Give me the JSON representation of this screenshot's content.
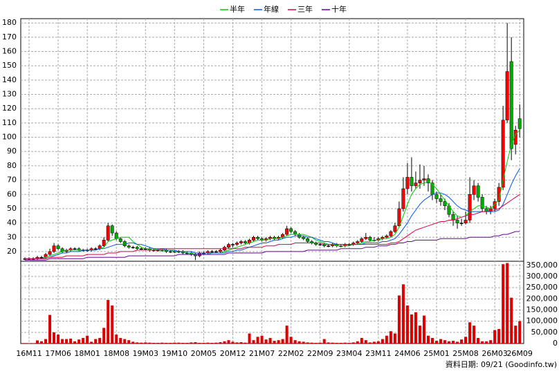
{
  "chart_data": {
    "type": "candlestick",
    "legend": "top",
    "categories": [
      null,
      "16M11",
      null,
      null,
      null,
      null,
      null,
      null,
      "17M06",
      null,
      null,
      null,
      null,
      null,
      null,
      "18M01",
      null,
      null,
      null,
      null,
      null,
      null,
      "18M08",
      null,
      null,
      null,
      null,
      null,
      null,
      "19M03",
      null,
      null,
      null,
      null,
      null,
      null,
      "19M10",
      null,
      null,
      null,
      null,
      null,
      null,
      "20M05",
      null,
      null,
      null,
      null,
      null,
      null,
      "20M12",
      null,
      null,
      null,
      null,
      null,
      null,
      "21M07",
      null,
      null,
      null,
      null,
      null,
      null,
      "22M02",
      null,
      null,
      null,
      null,
      null,
      null,
      "22M09",
      null,
      null,
      null,
      null,
      null,
      null,
      "23M04",
      null,
      null,
      null,
      null,
      null,
      null,
      "23M11",
      null,
      null,
      null,
      null,
      null,
      null,
      "24M06",
      null,
      null,
      null,
      null,
      null,
      null,
      "25M01",
      null,
      null,
      null,
      null,
      null,
      null,
      "25M08",
      null,
      null,
      null,
      null,
      null,
      null,
      "26M03",
      null,
      null,
      null,
      null,
      null,
      "26M09"
    ],
    "open": [
      15,
      15,
      15,
      15,
      16,
      16,
      18,
      20,
      24,
      22,
      20,
      21,
      22,
      22,
      21,
      21,
      21,
      22,
      22,
      24,
      28,
      38,
      33,
      29,
      27,
      24,
      23,
      23,
      22,
      22,
      22,
      21,
      21,
      21,
      21,
      20,
      20,
      20,
      20,
      19,
      19,
      18,
      17,
      19,
      19,
      20,
      20,
      20,
      21,
      23,
      25,
      25,
      26,
      27,
      26,
      28,
      30,
      29,
      28,
      29,
      30,
      29,
      30,
      32,
      36,
      34,
      32,
      30,
      29,
      27,
      26,
      25,
      25,
      24,
      24,
      25,
      24,
      24,
      25,
      25,
      26,
      27,
      29,
      30,
      28,
      28,
      29,
      30,
      31,
      34,
      38,
      50,
      64,
      72,
      66,
      68,
      70,
      71,
      68,
      60,
      57,
      55,
      52,
      46,
      42,
      40,
      40,
      42,
      60,
      66,
      58,
      50,
      48,
      50,
      55,
      65,
      112,
      153,
      95,
      113
    ],
    "high": [
      16,
      16,
      16,
      17,
      17,
      19,
      22,
      26,
      25,
      23,
      22,
      23,
      23,
      23,
      22,
      22,
      23,
      23,
      25,
      30,
      40,
      39,
      34,
      30,
      28,
      25,
      24,
      24,
      23,
      23,
      23,
      22,
      22,
      22,
      22,
      21,
      21,
      21,
      21,
      20,
      20,
      19,
      20,
      20,
      21,
      21,
      21,
      22,
      24,
      26,
      26,
      27,
      28,
      28,
      29,
      31,
      31,
      30,
      30,
      31,
      31,
      31,
      33,
      38,
      37,
      35,
      33,
      31,
      30,
      28,
      27,
      26,
      26,
      25,
      26,
      26,
      25,
      26,
      26,
      27,
      28,
      30,
      33,
      31,
      30,
      30,
      31,
      32,
      35,
      40,
      55,
      72,
      82,
      86,
      76,
      81,
      80,
      74,
      70,
      62,
      60,
      57,
      54,
      48,
      45,
      43,
      48,
      72,
      70,
      68,
      60,
      52,
      52,
      57,
      68,
      122,
      180,
      170,
      108,
      123
    ],
    "low": [
      14,
      14,
      14,
      14,
      15,
      15,
      17,
      19,
      21,
      19,
      19,
      20,
      21,
      20,
      20,
      20,
      20,
      21,
      21,
      23,
      27,
      31,
      28,
      26,
      23,
      22,
      22,
      21,
      21,
      21,
      20,
      20,
      20,
      20,
      19,
      19,
      19,
      19,
      18,
      18,
      17,
      14,
      16,
      18,
      18,
      19,
      19,
      19,
      20,
      22,
      23,
      24,
      25,
      25,
      25,
      27,
      28,
      27,
      27,
      28,
      28,
      28,
      29,
      31,
      33,
      31,
      29,
      28,
      26,
      25,
      24,
      24,
      23,
      23,
      23,
      23,
      23,
      23,
      24,
      24,
      25,
      26,
      28,
      27,
      27,
      27,
      28,
      29,
      30,
      33,
      37,
      48,
      60,
      62,
      64,
      64,
      66,
      62,
      56,
      54,
      52,
      49,
      44,
      38,
      36,
      38,
      39,
      40,
      56,
      55,
      48,
      46,
      46,
      48,
      52,
      63,
      110,
      84,
      88,
      100
    ],
    "close": [
      15,
      15,
      15,
      16,
      16,
      18,
      20,
      24,
      22,
      20,
      21,
      22,
      22,
      21,
      21,
      21,
      22,
      22,
      24,
      28,
      38,
      33,
      29,
      27,
      24,
      23,
      23,
      22,
      22,
      22,
      21,
      21,
      21,
      21,
      20,
      20,
      20,
      20,
      19,
      19,
      18,
      17,
      19,
      19,
      20,
      20,
      20,
      21,
      23,
      25,
      25,
      26,
      27,
      26,
      28,
      30,
      29,
      28,
      29,
      30,
      29,
      30,
      32,
      36,
      34,
      32,
      30,
      29,
      27,
      26,
      25,
      25,
      24,
      24,
      25,
      24,
      24,
      25,
      25,
      26,
      27,
      29,
      30,
      28,
      28,
      29,
      30,
      31,
      34,
      38,
      50,
      64,
      72,
      66,
      68,
      70,
      71,
      68,
      60,
      57,
      55,
      52,
      46,
      42,
      40,
      40,
      42,
      60,
      66,
      58,
      50,
      48,
      50,
      55,
      65,
      112,
      146,
      92,
      105,
      106
    ],
    "up_color": "#ff0000",
    "down_color": "#00aa00",
    "flat_color": "#000000",
    "series": [
      {
        "name": "半年",
        "color": "#00cc00",
        "values": [
          15,
          15,
          15,
          15,
          15,
          16,
          17,
          18,
          19,
          20,
          21,
          21,
          21,
          21,
          21,
          21,
          21,
          21,
          22,
          23,
          27,
          28,
          29,
          30,
          30,
          30,
          27,
          25,
          23,
          22,
          22,
          22,
          21,
          21,
          21,
          21,
          20,
          20,
          20,
          19,
          19,
          18,
          18,
          18,
          18,
          19,
          19,
          19,
          20,
          21,
          22,
          23,
          24,
          25,
          26,
          27,
          28,
          28,
          28,
          29,
          29,
          29,
          30,
          31,
          32,
          32,
          32,
          32,
          31,
          30,
          28,
          27,
          26,
          25,
          25,
          24,
          24,
          24,
          24,
          25,
          25,
          26,
          27,
          27,
          28,
          28,
          29,
          29,
          30,
          32,
          37,
          45,
          53,
          60,
          64,
          67,
          68,
          69,
          67,
          64,
          60,
          56,
          52,
          48,
          45,
          44,
          45,
          48,
          50,
          52,
          52,
          51,
          50,
          53,
          56,
          70,
          83,
          95,
          102,
          105
        ]
      },
      {
        "name": "年線",
        "color": "#0055ee",
        "values": [
          15,
          15,
          15,
          15,
          15,
          15,
          16,
          17,
          18,
          19,
          19,
          20,
          20,
          20,
          21,
          21,
          21,
          21,
          22,
          22,
          23,
          24,
          25,
          25,
          25,
          26,
          26,
          25,
          25,
          24,
          23,
          22,
          22,
          22,
          21,
          21,
          21,
          20,
          20,
          20,
          20,
          19,
          19,
          19,
          19,
          19,
          19,
          19,
          19,
          20,
          20,
          21,
          21,
          22,
          23,
          24,
          25,
          26,
          26,
          27,
          28,
          28,
          29,
          30,
          30,
          31,
          31,
          31,
          30,
          30,
          29,
          28,
          27,
          27,
          26,
          25,
          25,
          25,
          25,
          25,
          25,
          25,
          26,
          26,
          26,
          26,
          27,
          27,
          28,
          29,
          32,
          36,
          40,
          45,
          49,
          53,
          56,
          58,
          60,
          61,
          61,
          60,
          58,
          55,
          52,
          50,
          49,
          48,
          48,
          48,
          48,
          48,
          48,
          48,
          49,
          53,
          60,
          67,
          73,
          78
        ]
      },
      {
        "name": "三年",
        "color": "#dd0044",
        "values": [
          15,
          15,
          15,
          15,
          15,
          15,
          16,
          16,
          16,
          16,
          17,
          17,
          17,
          17,
          17,
          18,
          18,
          18,
          18,
          18,
          19,
          19,
          19,
          20,
          20,
          20,
          20,
          21,
          21,
          21,
          21,
          21,
          21,
          22,
          22,
          22,
          22,
          22,
          22,
          22,
          22,
          22,
          22,
          22,
          22,
          22,
          22,
          22,
          22,
          22,
          22,
          22,
          22,
          23,
          23,
          23,
          23,
          23,
          24,
          24,
          24,
          25,
          25,
          25,
          25,
          26,
          26,
          26,
          26,
          26,
          26,
          26,
          25,
          25,
          25,
          25,
          25,
          25,
          25,
          25,
          25,
          25,
          25,
          25,
          25,
          25,
          25,
          25,
          26,
          26,
          27,
          29,
          31,
          33,
          35,
          36,
          37,
          38,
          39,
          40,
          41,
          41,
          42,
          42,
          43,
          44,
          45,
          46,
          46,
          47,
          48,
          48,
          49,
          49,
          50,
          52,
          54,
          56,
          58,
          60
        ]
      },
      {
        "name": "十年",
        "color": "#660099",
        "values": [
          14,
          14,
          14,
          14,
          14,
          14,
          15,
          15,
          15,
          15,
          15,
          15,
          15,
          15,
          15,
          16,
          16,
          16,
          16,
          16,
          16,
          16,
          16,
          16,
          16,
          17,
          17,
          17,
          17,
          17,
          17,
          17,
          17,
          17,
          17,
          17,
          17,
          18,
          18,
          18,
          18,
          18,
          18,
          18,
          18,
          18,
          18,
          18,
          18,
          19,
          19,
          19,
          19,
          19,
          19,
          19,
          19,
          19,
          20,
          20,
          20,
          20,
          20,
          20,
          20,
          20,
          20,
          20,
          21,
          21,
          21,
          21,
          21,
          21,
          21,
          21,
          22,
          22,
          22,
          22,
          22,
          22,
          23,
          23,
          23,
          24,
          24,
          24,
          25,
          25,
          26,
          26,
          27,
          27,
          28,
          28,
          28,
          28,
          28,
          28,
          29,
          29,
          29,
          29,
          29,
          29,
          29,
          30,
          30,
          30,
          30,
          30,
          30,
          31,
          31,
          32,
          32,
          33,
          34,
          34
        ]
      }
    ],
    "ylim": [
      13.2,
      183
    ],
    "yticks": [
      20,
      30,
      40,
      50,
      60,
      70,
      80,
      90,
      100,
      110,
      120,
      130,
      140,
      150,
      160,
      170,
      180
    ],
    "volume": [
      2000,
      1000,
      1000,
      14000,
      10000,
      20000,
      128000,
      50000,
      40000,
      20000,
      20000,
      22000,
      10000,
      18000,
      25000,
      35000,
      8000,
      20000,
      25000,
      70000,
      195000,
      170000,
      40000,
      25000,
      20000,
      15000,
      8000,
      5000,
      4000,
      5000,
      4000,
      3000,
      3000,
      4000,
      3000,
      3000,
      4000,
      4000,
      3000,
      3000,
      5000,
      6000,
      3000,
      3000,
      4000,
      3000,
      4000,
      6000,
      10000,
      15000,
      8000,
      5000,
      6000,
      4000,
      45000,
      15000,
      30000,
      35000,
      18000,
      25000,
      12000,
      15000,
      20000,
      80000,
      30000,
      15000,
      10000,
      8000,
      5000,
      4000,
      3000,
      4000,
      20000,
      5000,
      4000,
      3000,
      3000,
      4000,
      3000,
      5000,
      10000,
      25000,
      15000,
      5000,
      8000,
      10000,
      20000,
      35000,
      55000,
      45000,
      215000,
      265000,
      170000,
      130000,
      140000,
      80000,
      125000,
      35000,
      25000,
      12000,
      20000,
      15000,
      10000,
      12000,
      8000,
      18000,
      30000,
      95000,
      80000,
      25000,
      10000,
      10000,
      15000,
      60000,
      65000,
      355000,
      360000,
      205000,
      80000,
      100000
    ],
    "volume_color": "#dd0000",
    "y2lim": [
      0,
      368000
    ],
    "y2ticks": [
      0,
      {
        "value": 50000,
        "label": "50,000"
      },
      {
        "value": 100000,
        "label": "100,000"
      },
      {
        "value": 150000,
        "label": "150,000"
      },
      {
        "value": 200000,
        "label": "200,000"
      },
      {
        "value": 250000,
        "label": "250,000"
      },
      {
        "value": 300000,
        "label": "300,000"
      },
      {
        "value": 350000,
        "label": "350,000"
      }
    ],
    "grid": true,
    "source": "資料日期: 09/21  (Goodinfo.tw)"
  }
}
